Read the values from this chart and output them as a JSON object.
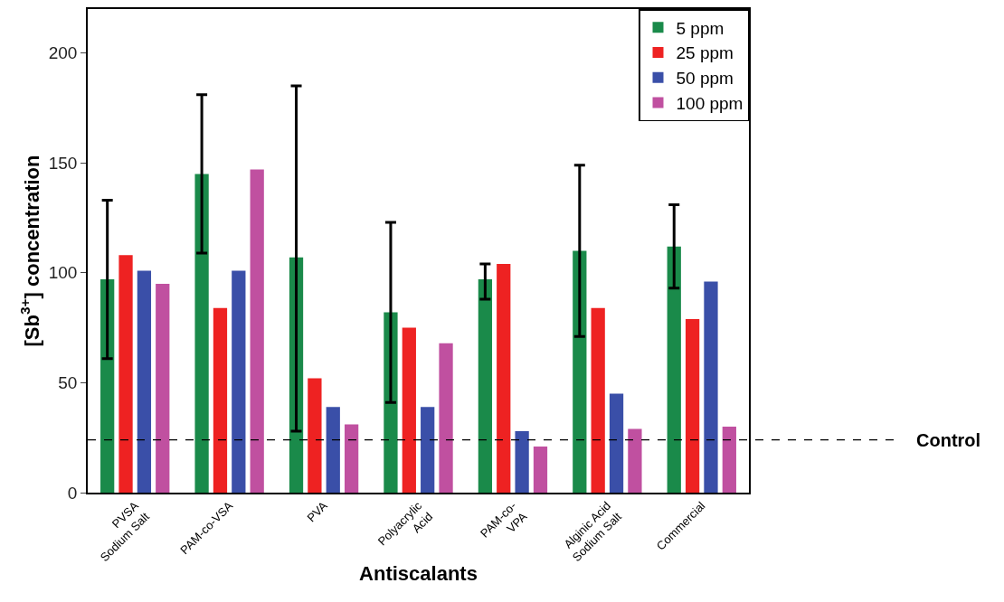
{
  "chart_data": {
    "type": "bar",
    "xlabel": "Antiscalants",
    "ylabel": "[Sb$^{3+}$] concentration",
    "categories": [
      "PVSA\nSodium Salt",
      "PAM-co-VSA",
      "PVA",
      "Polyacrylic\nAcid",
      "PAM-co-\nVPA",
      "Alginic Acid\nSodium Salt",
      "Commercial"
    ],
    "series": [
      {
        "name": "5 ppm",
        "color": "#1a8a4a",
        "values": [
          97,
          145,
          107,
          82,
          97,
          110,
          112
        ],
        "errors": [
          [
            61,
            133
          ],
          [
            109,
            181
          ],
          [
            28,
            185
          ],
          [
            41,
            123
          ],
          [
            88,
            104
          ],
          [
            71,
            149
          ],
          [
            93,
            131
          ]
        ]
      },
      {
        "name": "25 ppm",
        "color": "#ee2222",
        "values": [
          108,
          84,
          52,
          75,
          104,
          84,
          79
        ]
      },
      {
        "name": "50 ppm",
        "color": "#3a4fa8",
        "values": [
          101,
          101,
          39,
          39,
          28,
          45,
          96
        ]
      },
      {
        "name": "100 ppm",
        "color": "#c050a0",
        "values": [
          95,
          147,
          31,
          68,
          21,
          29,
          30
        ]
      }
    ],
    "ylim": [
      0,
      220
    ],
    "yticks": [
      0,
      50,
      100,
      150,
      200
    ],
    "grid": false,
    "legend": "top right",
    "ref_lines": [
      {
        "axis": "y",
        "value": 24,
        "label": "Control",
        "color": "#000000",
        "line_style": "dashed"
      }
    ]
  }
}
